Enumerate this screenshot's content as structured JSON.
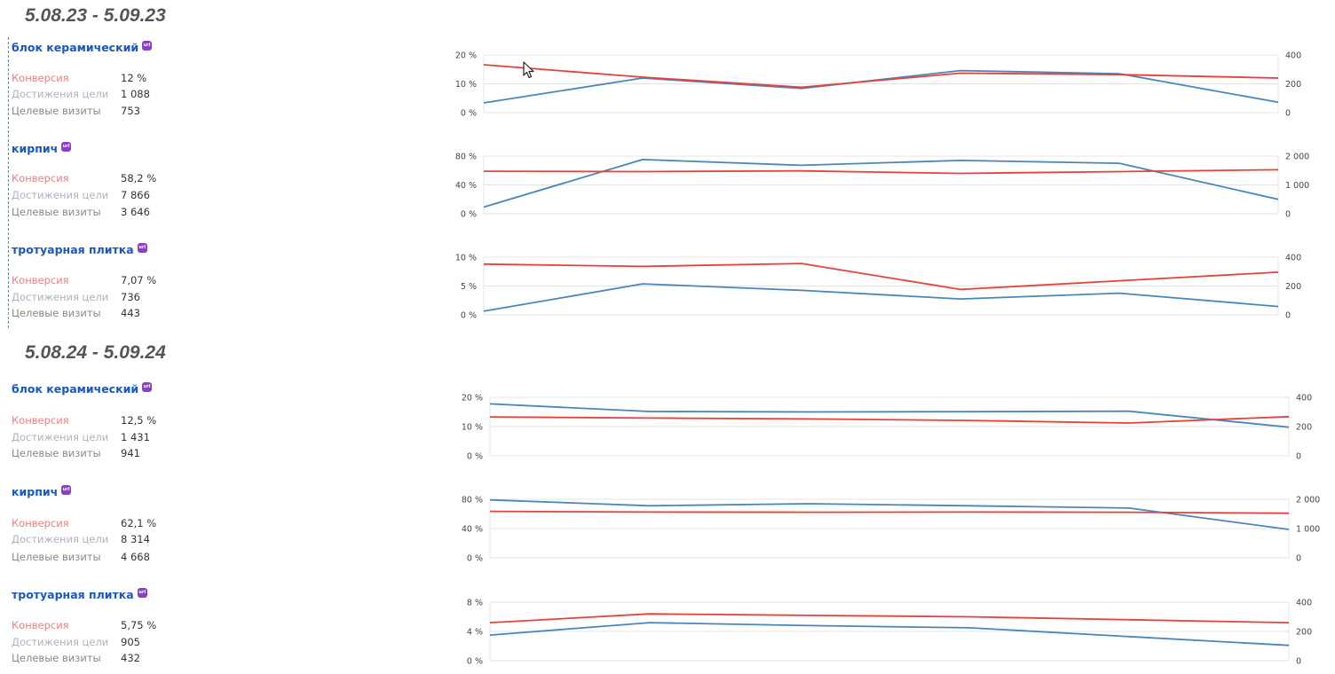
{
  "periods": [
    {
      "title": "5.08.23 - 5.09.23",
      "goals": [
        {
          "name": "блок керамический",
          "badge": "url",
          "metrics": {
            "conversion_label": "Конверсия",
            "conversion": "12 %",
            "achievements_label": "Достижения цели",
            "achievements": "1 088",
            "visits_label": "Целевые визиты",
            "visits": "753"
          },
          "chart": {
            "left_ticks": [
              "20 %",
              "10 %",
              "0 %"
            ],
            "right_ticks": [
              "400",
              "200",
              "0"
            ],
            "left_max": 20,
            "right_max": 400,
            "conversion_series": [
              16.6,
              12.3,
              8.8,
              13.7,
              13.2,
              12.0
            ],
            "visits_series": [
              68,
              240,
              168,
              292,
              270,
              72
            ]
          }
        },
        {
          "name": "кирпич",
          "badge": "url",
          "metrics": {
            "conversion_label": "Конверсия",
            "conversion": "58,2 %",
            "achievements_label": "Достижения цели",
            "achievements": "7 866",
            "visits_label": "Целевые визиты",
            "visits": "3 646"
          },
          "chart": {
            "left_ticks": [
              "80 %",
              "40 %",
              "0 %"
            ],
            "right_ticks": [
              "2 000",
              "1 000",
              "0"
            ],
            "left_max": 80,
            "right_max": 2000,
            "conversion_series": [
              59,
              58.5,
              59.5,
              56,
              58.5,
              61
            ],
            "visits_series": [
              230,
              1880,
              1680,
              1850,
              1750,
              500
            ]
          }
        },
        {
          "name": "тротуарная плитка",
          "badge": "url",
          "metrics": {
            "conversion_label": "Конверсия",
            "conversion": "7,07 %",
            "achievements_label": "Достижения цели",
            "achievements": "736",
            "visits_label": "Целевые визиты",
            "visits": "443"
          },
          "chart": {
            "left_ticks": [
              "10 %",
              "5 %",
              "0 %"
            ],
            "right_ticks": [
              "400",
              "200",
              "0"
            ],
            "left_max": 10,
            "right_max": 400,
            "conversion_series": [
              8.8,
              8.4,
              8.9,
              4.4,
              5.9,
              7.4
            ],
            "visits_series": [
              25,
              215,
              170,
              110,
              150,
              58
            ]
          }
        }
      ]
    },
    {
      "title": "5.08.24 - 5.09.24",
      "goals": [
        {
          "name": "блок керамический",
          "badge": "url",
          "metrics": {
            "conversion_label": "Конверсия",
            "conversion": "12,5 %",
            "achievements_label": "Достижения цели",
            "achievements": "1 431",
            "visits_label": "Целевые визиты",
            "visits": "941"
          },
          "chart": {
            "left_ticks": [
              "20 %",
              "10 %",
              "0 %"
            ],
            "right_ticks": [
              "400",
              "200",
              "0"
            ],
            "left_max": 20,
            "right_max": 400,
            "conversion_series": [
              13.3,
              12.9,
              12.6,
              12.1,
              11.2,
              13.4
            ],
            "visits_series": [
              355,
              303,
              300,
              302,
              305,
              196
            ]
          }
        },
        {
          "name": "кирпич",
          "badge": "url",
          "metrics": {
            "conversion_label": "Конверсия",
            "conversion": "62,1 %",
            "achievements_label": "Достижения цели",
            "achievements": "8 314",
            "visits_label": "Целевые визиты",
            "visits": "4 668"
          },
          "chart": {
            "left_ticks": [
              "80 %",
              "40 %",
              "0 %"
            ],
            "right_ticks": [
              "2 000",
              "1 000",
              "0"
            ],
            "left_max": 80,
            "right_max": 2000,
            "conversion_series": [
              63.5,
              62.5,
              62.3,
              62.5,
              62.3,
              61
            ],
            "visits_series": [
              1980,
              1780,
              1850,
              1780,
              1700,
              970
            ]
          }
        },
        {
          "name": "тротуарная плитка",
          "badge": "url",
          "metrics": {
            "conversion_label": "Конверсия",
            "conversion": "5,75 %",
            "achievements_label": "Достижения цели",
            "achievements": "905",
            "visits_label": "Целевые визиты",
            "visits": "432"
          },
          "chart": {
            "left_ticks": [
              "8 %",
              "4 %",
              "0 %"
            ],
            "right_ticks": [
              "400",
              "200",
              "0"
            ],
            "left_max": 8,
            "right_max": 400,
            "conversion_series": [
              5.2,
              6.4,
              6.2,
              6.0,
              5.6,
              5.2
            ],
            "visits_series": [
              175,
              260,
              240,
              225,
              165,
              105
            ]
          }
        }
      ]
    }
  ],
  "colors": {
    "conversion": "#e8403a",
    "visits": "#4a86b8",
    "grid": "#e4e4e4",
    "axis_text": "#444444"
  },
  "chart_data": [
    {
      "type": "line",
      "ylim": [
        0,
        20
      ],
      "y2lim": [
        0,
        400
      ],
      "series": [
        {
          "values": [
            16.6,
            12.3,
            8.8,
            13.7,
            13.2,
            12.0
          ]
        },
        {
          "values": [
            68,
            240,
            168,
            292,
            270,
            72
          ]
        }
      ]
    },
    {
      "type": "line",
      "ylim": [
        0,
        80
      ],
      "y2lim": [
        0,
        2000
      ],
      "series": [
        {
          "values": [
            59,
            58.5,
            59.5,
            56,
            58.5,
            61
          ]
        },
        {
          "values": [
            230,
            1880,
            1680,
            1850,
            1750,
            500
          ]
        }
      ]
    },
    {
      "type": "line",
      "ylim": [
        0,
        10
      ],
      "y2lim": [
        0,
        400
      ],
      "series": [
        {
          "values": [
            8.8,
            8.4,
            8.9,
            4.4,
            5.9,
            7.4
          ]
        },
        {
          "values": [
            25,
            215,
            170,
            110,
            150,
            58
          ]
        }
      ]
    },
    {
      "type": "line",
      "ylim": [
        0,
        20
      ],
      "y2lim": [
        0,
        400
      ],
      "series": [
        {
          "values": [
            13.3,
            12.9,
            12.6,
            12.1,
            11.2,
            13.4
          ]
        },
        {
          "values": [
            355,
            303,
            300,
            302,
            305,
            196
          ]
        }
      ]
    },
    {
      "type": "line",
      "ylim": [
        0,
        80
      ],
      "y2lim": [
        0,
        2000
      ],
      "series": [
        {
          "values": [
            63.5,
            62.5,
            62.3,
            62.5,
            62.3,
            61
          ]
        },
        {
          "values": [
            1980,
            1780,
            1850,
            1780,
            1700,
            970
          ]
        }
      ]
    },
    {
      "type": "line",
      "ylim": [
        0,
        8
      ],
      "y2lim": [
        0,
        400
      ],
      "series": [
        {
          "values": [
            5.2,
            6.4,
            6.2,
            6.0,
            5.6,
            5.2
          ]
        },
        {
          "values": [
            175,
            260,
            240,
            225,
            165,
            105
          ]
        }
      ]
    }
  ]
}
